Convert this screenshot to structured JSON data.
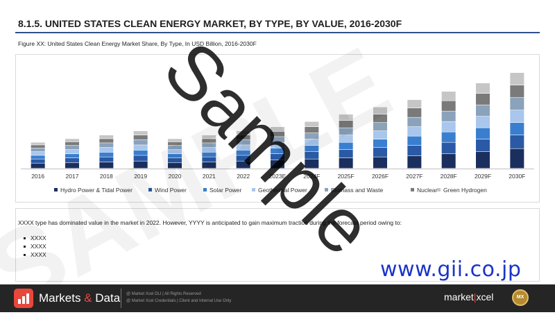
{
  "header": {
    "title": "8.1.5. UNITED STATES CLEAN ENERGY MARKET, BY TYPE, BY VALUE, 2016-2030F",
    "caption": "Figure XX: United States Clean Energy Market Share, By Type, In USD Billion, 2016-2030F"
  },
  "chart_data": {
    "type": "bar",
    "stacked": true,
    "title": "",
    "xlabel": "",
    "ylabel": "",
    "ylim": [
      0,
      9
    ],
    "grid": false,
    "legend_position": "bottom",
    "categories": [
      "2016",
      "2017",
      "2018",
      "2019",
      "2020",
      "2021",
      "2022",
      "2023E",
      "2024F",
      "2025F",
      "2026F",
      "2027F",
      "2028F",
      "2029F",
      "2030F"
    ],
    "series": [
      {
        "name": "Hydro Power & Tidal Power",
        "color": "#1b2f5e",
        "values": [
          0.5,
          0.55,
          0.6,
          0.7,
          0.55,
          0.6,
          0.7,
          0.8,
          0.9,
          1.0,
          1.1,
          1.2,
          1.4,
          1.6,
          1.9
        ]
      },
      {
        "name": "Wind Power",
        "color": "#2a5aa6",
        "values": [
          0.4,
          0.45,
          0.5,
          0.55,
          0.45,
          0.5,
          0.55,
          0.6,
          0.7,
          0.8,
          0.9,
          1.0,
          1.1,
          1.2,
          1.3
        ]
      },
      {
        "name": "Solar Power",
        "color": "#3a7fcf",
        "values": [
          0.35,
          0.4,
          0.45,
          0.5,
          0.4,
          0.45,
          0.5,
          0.55,
          0.6,
          0.7,
          0.8,
          0.9,
          1.0,
          1.1,
          1.2
        ]
      },
      {
        "name": "Geothermal Power",
        "color": "#a9c6ec",
        "values": [
          0.35,
          0.4,
          0.45,
          0.5,
          0.4,
          0.45,
          0.5,
          0.55,
          0.6,
          0.7,
          0.8,
          0.9,
          1.0,
          1.1,
          1.2
        ]
      },
      {
        "name": "Biomass and Waste",
        "color": "#8ba2bb",
        "values": [
          0.35,
          0.4,
          0.45,
          0.5,
          0.4,
          0.45,
          0.5,
          0.55,
          0.6,
          0.7,
          0.8,
          0.9,
          1.0,
          1.1,
          1.2
        ]
      },
      {
        "name": "Nuclear",
        "color": "#7a7a7a",
        "values": [
          0.3,
          0.35,
          0.4,
          0.45,
          0.35,
          0.4,
          0.45,
          0.5,
          0.6,
          0.7,
          0.8,
          0.9,
          1.0,
          1.1,
          1.2
        ]
      },
      {
        "name": "Green Hydrogen",
        "color": "#c6c6c6",
        "values": [
          0.25,
          0.3,
          0.35,
          0.4,
          0.3,
          0.35,
          0.4,
          0.45,
          0.5,
          0.6,
          0.7,
          0.8,
          0.9,
          1.0,
          1.2
        ]
      }
    ]
  },
  "summary": {
    "text": "XXXX type has dominated value in the market in 2022. However, YYYY is anticipated to gain maximum traction during the forecast period owing to:",
    "bullets": [
      "XXXX",
      "XXXX",
      "XXXX"
    ]
  },
  "watermark": {
    "text": "Sample",
    "background_text": "SAMPLE"
  },
  "stamp": {
    "url_text": "www.gii.co.jp"
  },
  "footer": {
    "brand_main": "Markets",
    "brand_amp": "&",
    "brand_end": "Data",
    "legal_line1": "@ Market Xcel DLI  |  All Rights Reserved",
    "legal_line2": "@ Market Xcel Credentials  |  Client and Internal Use Only",
    "mx_left": "market",
    "mx_sep": "|",
    "mx_right": "xcel",
    "badge_text": "MX"
  }
}
